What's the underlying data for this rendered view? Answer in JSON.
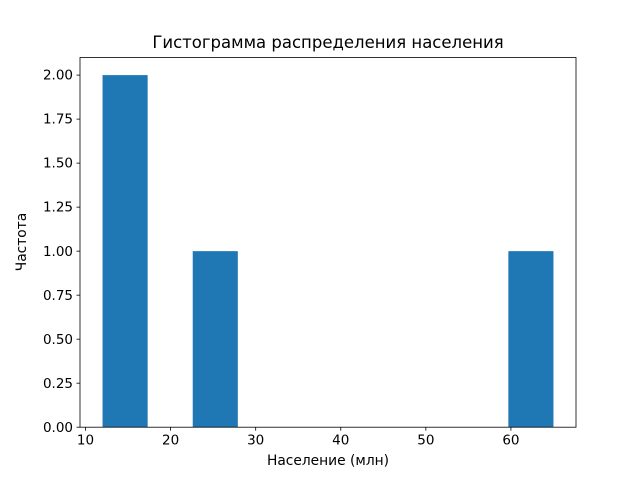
{
  "chart_data": {
    "type": "bar",
    "subtype": "histogram",
    "title": "Гистограмма распределения населения",
    "xlabel": "Население (млн)",
    "ylabel": "Частота",
    "xlim": [
      9.35,
      67.65
    ],
    "ylim": [
      0,
      2.1
    ],
    "grid": false,
    "legend": null,
    "bar_color": "#1f77b4",
    "xticks": [
      {
        "value": 10,
        "label": "10"
      },
      {
        "value": 20,
        "label": "20"
      },
      {
        "value": 30,
        "label": "30"
      },
      {
        "value": 40,
        "label": "40"
      },
      {
        "value": 50,
        "label": "50"
      },
      {
        "value": 60,
        "label": "60"
      }
    ],
    "yticks": [
      {
        "value": 0.0,
        "label": "0.00"
      },
      {
        "value": 0.25,
        "label": "0.25"
      },
      {
        "value": 0.5,
        "label": "0.50"
      },
      {
        "value": 0.75,
        "label": "0.75"
      },
      {
        "value": 1.0,
        "label": "1.00"
      },
      {
        "value": 1.25,
        "label": "1.25"
      },
      {
        "value": 1.5,
        "label": "1.50"
      },
      {
        "value": 1.75,
        "label": "1.75"
      },
      {
        "value": 2.0,
        "label": "2.00"
      }
    ],
    "bars": [
      {
        "x0": 12.0,
        "x1": 17.3,
        "height": 2
      },
      {
        "x0": 22.6,
        "x1": 27.9,
        "height": 1
      },
      {
        "x0": 59.7,
        "x1": 65.0,
        "height": 1
      }
    ]
  }
}
